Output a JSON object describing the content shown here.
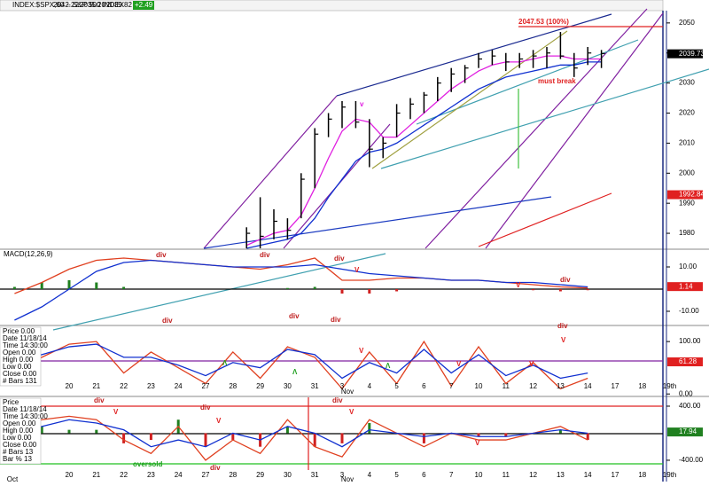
{
  "chart_data": [
    {
      "type": "ohlc",
      "title": "INDEX:$SPX,60 -- S&P 500 INDEX",
      "quote": [
        "2042.22",
        "2035.20",
        "2039.82",
        "+2.49"
      ],
      "color": "#000000",
      "x": [
        6.5,
        7,
        7.5,
        8,
        8.5,
        9,
        9.5,
        10,
        10.5,
        11,
        11.5,
        12,
        12.5,
        13,
        13.5,
        14,
        14.5,
        15,
        15.5,
        16,
        16.5,
        17,
        17.5,
        18,
        18.5,
        19,
        19.5
      ],
      "high": [
        1982,
        1992,
        1988,
        1985,
        2000,
        2015,
        2020,
        2024,
        2024,
        2018,
        2012,
        2023,
        2025,
        2027,
        2032,
        2035,
        2036,
        2040,
        2041,
        2040,
        2040,
        2041,
        2042,
        2047,
        2040,
        2042,
        2041
      ],
      "low": [
        1975,
        1975,
        1978,
        1978,
        1985,
        1995,
        2012,
        2015,
        2015,
        2002,
        2005,
        2012,
        2018,
        2020,
        2024,
        2027,
        2030,
        2035,
        2036,
        2034,
        2035,
        2035,
        2035,
        2038,
        2032,
        2036,
        2035
      ],
      "close": [
        1980,
        1979,
        1984,
        1981,
        1998,
        2013,
        2018,
        2022,
        2017,
        2008,
        2010,
        2020,
        2023,
        2026,
        2030,
        2033,
        2035,
        2038,
        2039,
        2037,
        2038,
        2039,
        2040,
        2039,
        2035,
        2040,
        2039.82
      ],
      "series": [
        {
          "color": "#e020e0",
          "values": [
            1976,
            1978,
            1980,
            1981,
            1986,
            1995,
            2005,
            2014,
            2018,
            2017,
            2012,
            2012,
            2016,
            2020,
            2024,
            2028,
            2031,
            2034,
            2036,
            2037,
            2037,
            2038,
            2039,
            2039,
            2038,
            2038,
            2038
          ]
        },
        {
          "color": "#1030d0",
          "values": [
            1975,
            1976,
            1977,
            1978,
            1980,
            1985,
            1992,
            1998,
            2004,
            2007,
            2008,
            2010,
            2013,
            2016,
            2019,
            2022,
            2025,
            2028,
            2030,
            2032,
            2033,
            2034,
            2035,
            2036,
            2036,
            2037,
            2037
          ]
        }
      ],
      "ylim": [
        1975,
        2053.5
      ],
      "yticks": [
        1980,
        1990,
        2000,
        2010,
        2020,
        2030,
        2040,
        2050
      ],
      "tags": [
        2039.73,
        1992.84
      ],
      "tag_colors": [
        "#000000",
        "#e02020"
      ],
      "annotations": [
        "2047.53 (100%)",
        "must break",
        "v"
      ]
    },
    {
      "type": "line",
      "title": "MACD(12,26,9)",
      "x": [
        -2,
        -1,
        0,
        1,
        2,
        3,
        4,
        5,
        6,
        7,
        8,
        9,
        10,
        11,
        12,
        13,
        14,
        15,
        16,
        17,
        18,
        19
      ],
      "series": [
        {
          "type": "bar",
          "color": "#208020",
          "values": [
            1,
            3,
            4,
            3,
            1,
            0,
            0,
            0,
            0,
            0,
            0.5,
            1,
            -2,
            -2,
            -1,
            0,
            0,
            0,
            0,
            -0.5,
            -1,
            -0.5
          ]
        },
        {
          "color": "#e04020",
          "values": [
            -2,
            3,
            9,
            13,
            14,
            13,
            12,
            11,
            10,
            9,
            11,
            14,
            4,
            4,
            5,
            5,
            4,
            4,
            3,
            2,
            1,
            0.5
          ]
        },
        {
          "color": "#1030d0",
          "values": [
            -14,
            -8,
            0,
            8,
            12,
            13,
            12,
            11,
            10,
            10,
            10,
            11,
            9,
            7,
            6,
            5,
            4,
            4,
            3,
            3,
            2,
            1
          ]
        }
      ],
      "ylim": [
        -16,
        17.6
      ],
      "yticks": [
        {
          "value": 10,
          "label": "10.00"
        },
        {
          "value": -10,
          "label": "-10.00"
        }
      ],
      "tags": [
        1.14
      ],
      "tag_colors": [
        "#e02020"
      ],
      "annotations": [
        "div",
        "div",
        "div",
        "V",
        "V",
        "div"
      ]
    },
    {
      "type": "line",
      "x": [
        -2,
        -1,
        0,
        1,
        2,
        3,
        4,
        5,
        6,
        7,
        8,
        9,
        10,
        11,
        12,
        13,
        14,
        15,
        16,
        17,
        18,
        19
      ],
      "series": [
        {
          "color": "#e04020",
          "values": [
            50,
            70,
            95,
            100,
            40,
            80,
            50,
            20,
            80,
            30,
            90,
            70,
            10,
            80,
            20,
            100,
            15,
            90,
            20,
            60,
            10,
            30
          ]
        },
        {
          "color": "#1030d0",
          "values": [
            60,
            75,
            90,
            95,
            70,
            70,
            55,
            35,
            60,
            50,
            85,
            75,
            30,
            60,
            40,
            85,
            40,
            75,
            35,
            55,
            30,
            40
          ]
        }
      ],
      "ylim": [
        -3,
        129
      ],
      "yticks": [
        {
          "value": 100,
          "label": "100.00"
        },
        {
          "value": 0,
          "label": "0.00"
        }
      ],
      "tags": [
        61.28
      ],
      "tag_colors": [
        "#e02020"
      ],
      "categories": [
        "20",
        "21",
        "22",
        "23",
        "24",
        "27",
        "28",
        "29",
        "30",
        "31",
        "3",
        "4",
        "5",
        "6",
        "7",
        "10",
        "11",
        "12",
        "13",
        "14",
        "17",
        "18",
        "19th"
      ],
      "month_labels": [
        "Nov"
      ],
      "data_window": [
        "Price 0.00",
        "Date 11/18/14",
        "Time 14:30:00",
        "Open 0.00",
        "High 0.00",
        "Low 0.00",
        "Close 0.00",
        "# Bars 131"
      ],
      "annotations": [
        "div",
        "div",
        "div",
        "div",
        "V",
        "V",
        "V",
        "V",
        "Λ",
        "Λ",
        "Λ"
      ]
    },
    {
      "type": "line",
      "x": [
        -2,
        -1,
        0,
        1,
        2,
        3,
        4,
        5,
        6,
        7,
        8,
        9,
        10,
        11,
        12,
        13,
        14,
        15,
        16,
        17,
        18,
        19
      ],
      "series": [
        {
          "type": "bar",
          "color": "#208020",
          "values": [
            100,
            100,
            50,
            50,
            -150,
            -100,
            200,
            -200,
            -100,
            -200,
            100,
            -200,
            -150,
            150,
            0,
            -150,
            0,
            -50,
            -50,
            0,
            50,
            -100
          ]
        },
        {
          "color": "#e04020",
          "values": [
            100,
            200,
            250,
            200,
            -100,
            -300,
            100,
            -400,
            -100,
            -300,
            200,
            -200,
            -350,
            200,
            0,
            -200,
            0,
            -100,
            -100,
            0,
            100,
            -100
          ]
        },
        {
          "color": "#1030d0",
          "values": [
            0,
            100,
            200,
            150,
            50,
            -200,
            -100,
            -200,
            0,
            -100,
            100,
            0,
            -200,
            50,
            0,
            -50,
            0,
            -50,
            -50,
            0,
            50,
            0
          ]
        }
      ],
      "ylim": [
        -545,
        531
      ],
      "yticks": [
        {
          "value": 400,
          "label": "400.00"
        },
        {
          "value": -400,
          "label": "-400.00"
        }
      ],
      "tags": [
        17.94
      ],
      "tag_colors": [
        "#208020"
      ],
      "categories": [
        "20",
        "21",
        "22",
        "23",
        "24",
        "27",
        "28",
        "29",
        "30",
        "31",
        "3",
        "4",
        "5",
        "6",
        "7",
        "10",
        "11",
        "12",
        "13",
        "14",
        "17",
        "18",
        "19th"
      ],
      "month_labels": [
        "Oct",
        "Nov"
      ],
      "data_window": [
        "Price",
        "Date 11/18/14",
        "Time 14:30:00",
        "Open 0.00",
        "High 0.00",
        "Low 0.00",
        "Close 0.00",
        "# Bars 13",
        "Bar % 13"
      ],
      "annotations": [
        "div",
        "div",
        "div",
        "V",
        "V",
        "V",
        "V",
        "oversold",
        "div"
      ]
    }
  ]
}
